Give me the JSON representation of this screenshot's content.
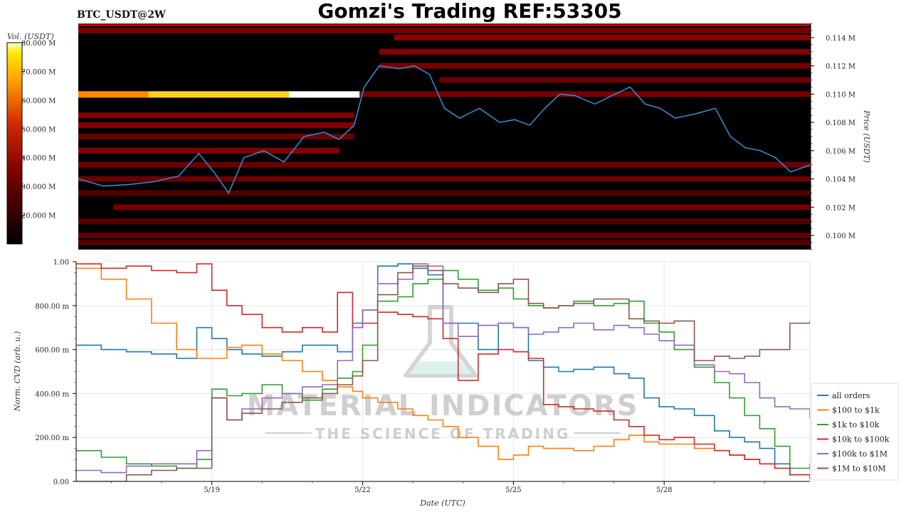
{
  "header": {
    "symbol": "BTC_USDT@2W",
    "title": "Gomzi's Trading REF:53305"
  },
  "watermark": {
    "line1": "MATERIAL INDICATORS",
    "line2": "THE SCIENCE OF TRADING"
  },
  "colors": {
    "price_line": "#3a86c8",
    "heat_low": "#000000",
    "heat_mid": "#8b0000",
    "heat_high": "#ffd000",
    "heat_max": "#ffffff"
  },
  "chart_data": [
    {
      "type": "heatmap",
      "name": "order-book-heatmap",
      "colorbar": {
        "label": "Vol. (USDT)",
        "range": [
          10,
          80
        ],
        "ticks": [
          "20.000 M",
          "30.000 M",
          "40.000 M",
          "50.000 M",
          "60.000 M",
          "70.000 M",
          "80.000 M"
        ],
        "tick_values": [
          20,
          30,
          40,
          50,
          60,
          70,
          80
        ]
      },
      "y_axis": {
        "label": "Price (USDT)",
        "range": [
          0.099,
          0.115
        ],
        "ticks": [
          "0.100 M",
          "0.102 M",
          "0.104 M",
          "0.106 M",
          "0.108 M",
          "0.110 M",
          "0.112 M",
          "0.114 M"
        ],
        "tick_values": [
          0.1,
          0.102,
          0.104,
          0.106,
          0.108,
          0.11,
          0.112,
          0.114
        ]
      },
      "x_range": [
        16.3,
        30.9
      ],
      "bands": [
        {
          "price": 0.115,
          "start": 16.3,
          "end": 30.9,
          "intensity": 0.55
        },
        {
          "price": 0.1145,
          "start": 16.3,
          "end": 30.9,
          "intensity": 0.35
        },
        {
          "price": 0.114,
          "start": 22.6,
          "end": 30.9,
          "intensity": 0.45
        },
        {
          "price": 0.113,
          "start": 22.3,
          "end": 30.9,
          "intensity": 0.4
        },
        {
          "price": 0.112,
          "start": 22.3,
          "end": 30.9,
          "intensity": 0.35
        },
        {
          "price": 0.111,
          "start": 23.5,
          "end": 30.9,
          "intensity": 0.3
        },
        {
          "price": 0.11,
          "start": 16.3,
          "end": 21.9,
          "intensity": 0.85
        },
        {
          "price": 0.11,
          "start": 21.9,
          "end": 30.9,
          "intensity": 0.35
        },
        {
          "price": 0.1085,
          "start": 16.3,
          "end": 21.8,
          "intensity": 0.4
        },
        {
          "price": 0.1078,
          "start": 16.3,
          "end": 21.8,
          "intensity": 0.4
        },
        {
          "price": 0.107,
          "start": 16.3,
          "end": 21.8,
          "intensity": 0.3
        },
        {
          "price": 0.106,
          "start": 16.3,
          "end": 21.5,
          "intensity": 0.4
        },
        {
          "price": 0.105,
          "start": 16.3,
          "end": 30.9,
          "intensity": 0.3
        },
        {
          "price": 0.104,
          "start": 16.3,
          "end": 30.9,
          "intensity": 0.3
        },
        {
          "price": 0.103,
          "start": 16.3,
          "end": 30.9,
          "intensity": 0.2
        },
        {
          "price": 0.102,
          "start": 17.0,
          "end": 30.9,
          "intensity": 0.35
        },
        {
          "price": 0.101,
          "start": 16.3,
          "end": 30.9,
          "intensity": 0.2
        },
        {
          "price": 0.1,
          "start": 16.3,
          "end": 30.9,
          "intensity": 0.25
        },
        {
          "price": 0.0995,
          "start": 16.3,
          "end": 30.9,
          "intensity": 0.2
        }
      ],
      "hotspot": {
        "price": 0.11,
        "start": 16.3,
        "end": 21.9,
        "levels": [
          0.8,
          0.85,
          0.9,
          1.0
        ]
      },
      "price_series": {
        "name": "BTC price",
        "x": [
          16.3,
          16.8,
          17.3,
          17.8,
          18.3,
          18.7,
          19.0,
          19.3,
          19.6,
          20.0,
          20.4,
          20.8,
          21.2,
          21.5,
          21.8,
          22.0,
          22.3,
          22.7,
          23.0,
          23.3,
          23.6,
          23.9,
          24.3,
          24.7,
          25.0,
          25.3,
          25.6,
          25.9,
          26.2,
          26.6,
          27.0,
          27.3,
          27.6,
          27.9,
          28.2,
          28.6,
          29.0,
          29.3,
          29.6,
          29.9,
          30.2,
          30.5,
          30.9
        ],
        "y": [
          0.104,
          0.1035,
          0.1036,
          0.1038,
          0.1042,
          0.1058,
          0.1045,
          0.103,
          0.1055,
          0.106,
          0.1052,
          0.107,
          0.1073,
          0.1068,
          0.1078,
          0.1105,
          0.112,
          0.1118,
          0.112,
          0.1114,
          0.109,
          0.1083,
          0.109,
          0.108,
          0.1082,
          0.1078,
          0.109,
          0.11,
          0.1099,
          0.1093,
          0.11,
          0.1105,
          0.1093,
          0.109,
          0.1083,
          0.1086,
          0.109,
          0.107,
          0.1062,
          0.106,
          0.1055,
          0.1045,
          0.105
        ]
      }
    },
    {
      "type": "line",
      "name": "normalized-cvd",
      "x_axis": {
        "label": "Date (UTC)",
        "range": [
          16.3,
          30.9
        ],
        "ticks": [
          "5/19",
          "5/22",
          "5/25",
          "5/28"
        ],
        "tick_values": [
          19,
          22,
          25,
          28
        ]
      },
      "y_axis": {
        "label": "Norm. CVD (arb. u.)",
        "range": [
          0,
          1
        ],
        "ticks": [
          "0.00",
          "200.00 m",
          "400.00 m",
          "600.00 m",
          "800.00 m",
          "1.00"
        ],
        "tick_values": [
          0,
          0.2,
          0.4,
          0.6,
          0.8,
          1.0
        ]
      },
      "x": [
        16.3,
        16.8,
        17.3,
        17.8,
        18.3,
        18.7,
        19.0,
        19.3,
        19.6,
        20.0,
        20.4,
        20.8,
        21.2,
        21.5,
        21.8,
        22.0,
        22.3,
        22.7,
        23.0,
        23.3,
        23.6,
        23.9,
        24.3,
        24.7,
        25.0,
        25.3,
        25.6,
        25.9,
        26.2,
        26.6,
        27.0,
        27.3,
        27.6,
        27.9,
        28.2,
        28.6,
        29.0,
        29.3,
        29.6,
        29.9,
        30.2,
        30.5,
        30.9
      ],
      "legend_position": "right",
      "series": [
        {
          "name": "all orders",
          "color": "#1f77b4",
          "values": [
            0.62,
            0.6,
            0.59,
            0.58,
            0.56,
            0.7,
            0.65,
            0.6,
            0.58,
            0.57,
            0.59,
            0.62,
            0.62,
            0.59,
            0.72,
            0.78,
            0.98,
            0.99,
            0.97,
            0.94,
            0.72,
            0.72,
            0.6,
            0.72,
            0.7,
            0.55,
            0.52,
            0.5,
            0.51,
            0.52,
            0.49,
            0.47,
            0.38,
            0.34,
            0.33,
            0.3,
            0.23,
            0.2,
            0.18,
            0.15,
            0.08,
            0.03,
            0.02
          ]
        },
        {
          "name": "$100 to $1k",
          "color": "#ff7f0e",
          "values": [
            0.97,
            0.92,
            0.83,
            0.72,
            0.6,
            0.56,
            0.56,
            0.61,
            0.62,
            0.58,
            0.55,
            0.5,
            0.46,
            0.43,
            0.41,
            0.38,
            0.36,
            0.33,
            0.3,
            0.28,
            0.25,
            0.2,
            0.16,
            0.1,
            0.12,
            0.16,
            0.15,
            0.15,
            0.14,
            0.16,
            0.19,
            0.21,
            0.18,
            0.17,
            0.17,
            0.15,
            0.14,
            0.12,
            0.1,
            0.08,
            0.06,
            0.03,
            0.02
          ]
        },
        {
          "name": "$1k to $10k",
          "color": "#2ca02c",
          "values": [
            0.14,
            0.11,
            0.08,
            0.07,
            0.06,
            0.1,
            0.42,
            0.39,
            0.4,
            0.44,
            0.4,
            0.37,
            0.42,
            0.47,
            0.5,
            0.62,
            0.82,
            0.84,
            0.9,
            0.92,
            0.96,
            0.92,
            0.87,
            0.88,
            0.83,
            0.8,
            0.79,
            0.8,
            0.82,
            0.8,
            0.81,
            0.82,
            0.72,
            0.68,
            0.6,
            0.52,
            0.45,
            0.38,
            0.3,
            0.24,
            0.16,
            0.06,
            0.08
          ]
        },
        {
          "name": "$10k to $100k",
          "color": "#d62728",
          "values": [
            0.99,
            0.97,
            0.98,
            0.96,
            0.95,
            0.99,
            0.87,
            0.8,
            0.76,
            0.7,
            0.68,
            0.7,
            0.68,
            0.86,
            0.7,
            0.72,
            0.77,
            0.76,
            0.75,
            0.74,
            0.65,
            0.46,
            0.58,
            0.6,
            0.59,
            0.56,
            0.35,
            0.34,
            0.33,
            0.32,
            0.28,
            0.25,
            0.21,
            0.19,
            0.2,
            0.17,
            0.14,
            0.12,
            0.1,
            0.08,
            0.06,
            0.03,
            0.01
          ]
        },
        {
          "name": "$100k to $1M",
          "color": "#9467bd",
          "values": [
            0.05,
            0.04,
            0.07,
            0.08,
            0.08,
            0.14,
            0.38,
            0.28,
            0.33,
            0.38,
            0.4,
            0.43,
            0.44,
            0.55,
            0.7,
            0.78,
            0.9,
            0.92,
            0.99,
            0.98,
            0.72,
            0.66,
            0.71,
            0.72,
            0.7,
            0.67,
            0.68,
            0.7,
            0.72,
            0.69,
            0.71,
            0.7,
            0.67,
            0.64,
            0.62,
            0.53,
            0.5,
            0.49,
            0.45,
            0.38,
            0.34,
            0.33,
            0.29
          ]
        },
        {
          "name": "$1M to $10M",
          "color": "#8c564b",
          "values": [
            0.0,
            0.0,
            0.03,
            0.05,
            0.06,
            0.06,
            0.38,
            0.28,
            0.31,
            0.33,
            0.36,
            0.38,
            0.4,
            0.44,
            0.48,
            0.55,
            0.85,
            0.95,
            0.98,
            0.96,
            0.9,
            0.88,
            0.86,
            0.9,
            0.92,
            0.81,
            0.79,
            0.8,
            0.81,
            0.83,
            0.83,
            0.74,
            0.73,
            0.72,
            0.73,
            0.55,
            0.57,
            0.56,
            0.57,
            0.6,
            0.6,
            0.72,
            0.73
          ]
        }
      ]
    }
  ]
}
